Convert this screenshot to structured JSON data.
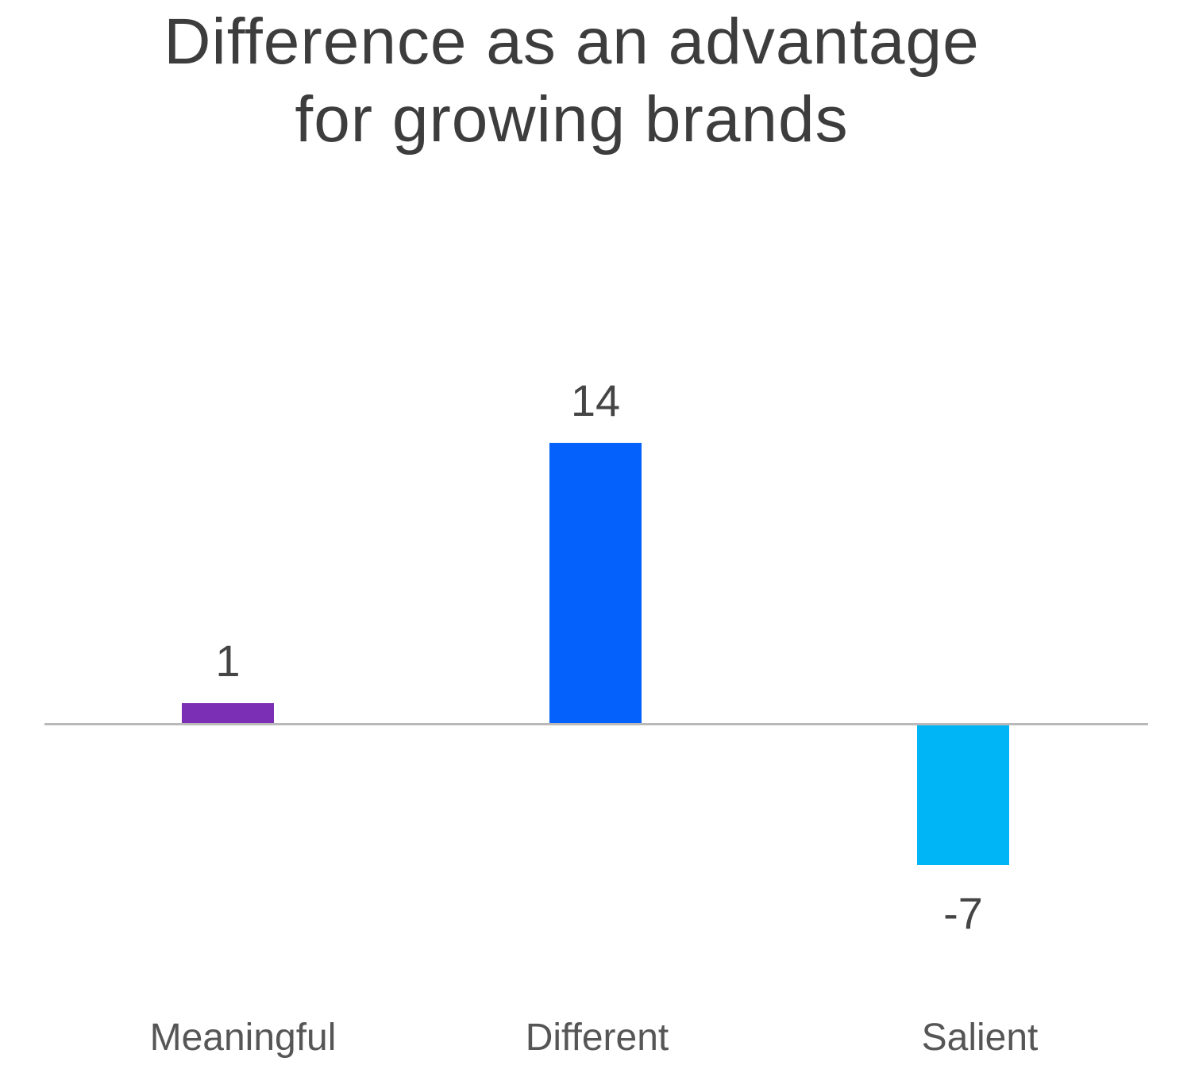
{
  "page": {
    "background": "#FFFFFF"
  },
  "title": {
    "line1": "Difference as an advantage",
    "line2": "for growing brands",
    "color": "#3D3D3D"
  },
  "chart_data": {
    "type": "bar",
    "orientation": "vertical",
    "title": "Difference as an advantage for growing brands",
    "categories": [
      "Meaningful",
      "Different",
      "Salient"
    ],
    "values": [
      1,
      14,
      -7
    ],
    "value_labels": [
      "1",
      "14",
      "-7"
    ],
    "bar_colors": [
      "#7B2FB5",
      "#0561FC",
      "#00B5F6"
    ],
    "baseline_value": 0,
    "ylim": [
      -9,
      16
    ],
    "axis_line_color": "#B9B9B9",
    "value_label_color": "#454545",
    "category_label_color": "#565656",
    "title_color": "#3D3D3D",
    "grid": false,
    "legend": false,
    "xlabel": "",
    "ylabel": ""
  }
}
